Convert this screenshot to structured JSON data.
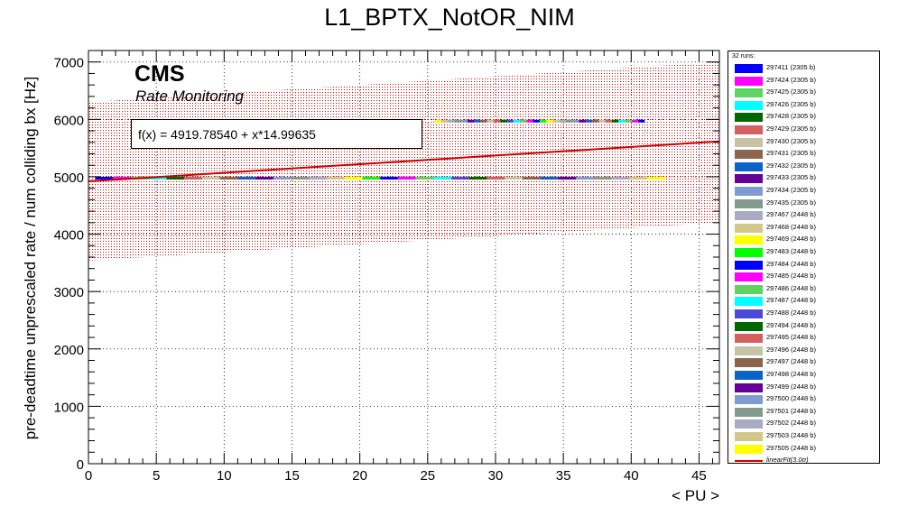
{
  "title": "L1_BPTX_NotOR_NIM",
  "cms_label": "CMS",
  "subtitle": "Rate Monitoring",
  "fit_label": "f(x) = 4919.78540 + x*14.99635",
  "legend": {
    "header": "32 runs:",
    "entries": [
      {
        "run": "297411",
        "bunches": "(2305 b)",
        "color": "#0000ff"
      },
      {
        "run": "297424",
        "bunches": "(2305 b)",
        "color": "#ff00ff"
      },
      {
        "run": "297425",
        "bunches": "(2305 b)",
        "color": "#5fd35f"
      },
      {
        "run": "297426",
        "bunches": "(2305 b)",
        "color": "#00ffff"
      },
      {
        "run": "297428",
        "bunches": "(2305 b)",
        "color": "#006600"
      },
      {
        "run": "297429",
        "bunches": "(2305 b)",
        "color": "#d35f5f"
      },
      {
        "run": "297430",
        "bunches": "(2305 b)",
        "color": "#c8c3a5"
      },
      {
        "run": "297431",
        "bunches": "(2305 b)",
        "color": "#8c6450"
      },
      {
        "run": "297432",
        "bunches": "(2305 b)",
        "color": "#0a64c8"
      },
      {
        "run": "297433",
        "bunches": "(2305 b)",
        "color": "#640096"
      },
      {
        "run": "297434",
        "bunches": "(2305 b)",
        "color": "#7f9bd2"
      },
      {
        "run": "297435",
        "bunches": "(2305 b)",
        "color": "#829b8c"
      },
      {
        "run": "297467",
        "bunches": "(2448 b)",
        "color": "#aaaac3"
      },
      {
        "run": "297468",
        "bunches": "(2448 b)",
        "color": "#d2c88c"
      },
      {
        "run": "297469",
        "bunches": "(2448 b)",
        "color": "#ffff00"
      },
      {
        "run": "297483",
        "bunches": "(2448 b)",
        "color": "#00ff00"
      },
      {
        "run": "297484",
        "bunches": "(2448 b)",
        "color": "#0000ff"
      },
      {
        "run": "297485",
        "bunches": "(2448 b)",
        "color": "#ff00ff"
      },
      {
        "run": "297486",
        "bunches": "(2448 b)",
        "color": "#5fd35f"
      },
      {
        "run": "297487",
        "bunches": "(2448 b)",
        "color": "#00ffff"
      },
      {
        "run": "297488",
        "bunches": "(2448 b)",
        "color": "#4b4bd7"
      },
      {
        "run": "297494",
        "bunches": "(2448 b)",
        "color": "#006600"
      },
      {
        "run": "297495",
        "bunches": "(2448 b)",
        "color": "#d35f5f"
      },
      {
        "run": "297496",
        "bunches": "(2448 b)",
        "color": "#c8c3a5"
      },
      {
        "run": "297497",
        "bunches": "(2448 b)",
        "color": "#8c6450"
      },
      {
        "run": "297498",
        "bunches": "(2448 b)",
        "color": "#0a64c8"
      },
      {
        "run": "297499",
        "bunches": "(2448 b)",
        "color": "#640096"
      },
      {
        "run": "297500",
        "bunches": "(2448 b)",
        "color": "#7f9bd2"
      },
      {
        "run": "297501",
        "bunches": "(2448 b)",
        "color": "#829b8c"
      },
      {
        "run": "297502",
        "bunches": "(2448 b)",
        "color": "#aaaac3"
      },
      {
        "run": "297503",
        "bunches": "(2448 b)",
        "color": "#d2c88c"
      },
      {
        "run": "297505",
        "bunches": "(2448 b)",
        "color": "#ffff00"
      }
    ],
    "fit_entry": {
      "label": "linearFit",
      "sigma": "(3.0σ)",
      "color": "#cc0000"
    }
  },
  "chart_data": {
    "type": "scatter",
    "title": "L1_BPTX_NotOR_NIM",
    "xlabel": "< PU >",
    "ylabel": "pre-deadtime unprescaled rate / num colliding bx [Hz]",
    "xlim": [
      0,
      46.5
    ],
    "ylim": [
      0,
      7200
    ],
    "xticks": [
      0,
      5,
      10,
      15,
      20,
      25,
      30,
      35,
      40,
      45
    ],
    "yticks": [
      0,
      1000,
      2000,
      3000,
      4000,
      5000,
      6000,
      7000
    ],
    "grid": true,
    "legend_position": "right",
    "fit": {
      "intercept": 4919.7854,
      "slope": 14.99635,
      "x_range": [
        0,
        46.5
      ]
    },
    "band": {
      "lower": [
        [
          0,
          3540
        ],
        [
          46.5,
          4200
        ]
      ],
      "upper": [
        [
          0,
          6300
        ],
        [
          46.5,
          7000
        ]
      ]
    },
    "series_clusters": [
      {
        "y": 5970,
        "x_range": [
          25.5,
          41
        ],
        "note": "upper rate cluster"
      },
      {
        "y": 4975,
        "x_range": [
          0.5,
          42.5
        ],
        "note": "lower rate cluster"
      }
    ]
  }
}
